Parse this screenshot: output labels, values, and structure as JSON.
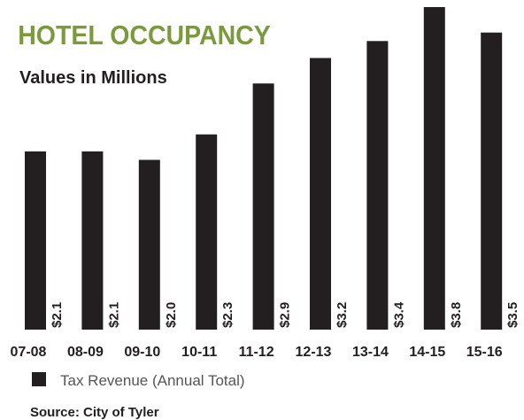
{
  "chart_data": {
    "type": "bar",
    "title": "HOTEL OCCUPANCY",
    "subtitle": "Values in Millions",
    "categories": [
      "07-08",
      "08-09",
      "09-10",
      "10-11",
      "11-12",
      "12-13",
      "13-14",
      "14-15",
      "15-16"
    ],
    "series": [
      {
        "name": "Tax Revenue (Annual Total)",
        "color": "#231f20",
        "values": [
          2.1,
          2.1,
          2.0,
          2.3,
          2.9,
          3.2,
          3.4,
          3.8,
          3.5
        ],
        "value_labels": [
          "$2.1",
          "$2.1",
          "$2.0",
          "$2.3",
          "$2.9",
          "$3.2",
          "$3.4",
          "$3.8",
          "$3.5"
        ]
      }
    ],
    "source": "Source: City of Tyler"
  }
}
